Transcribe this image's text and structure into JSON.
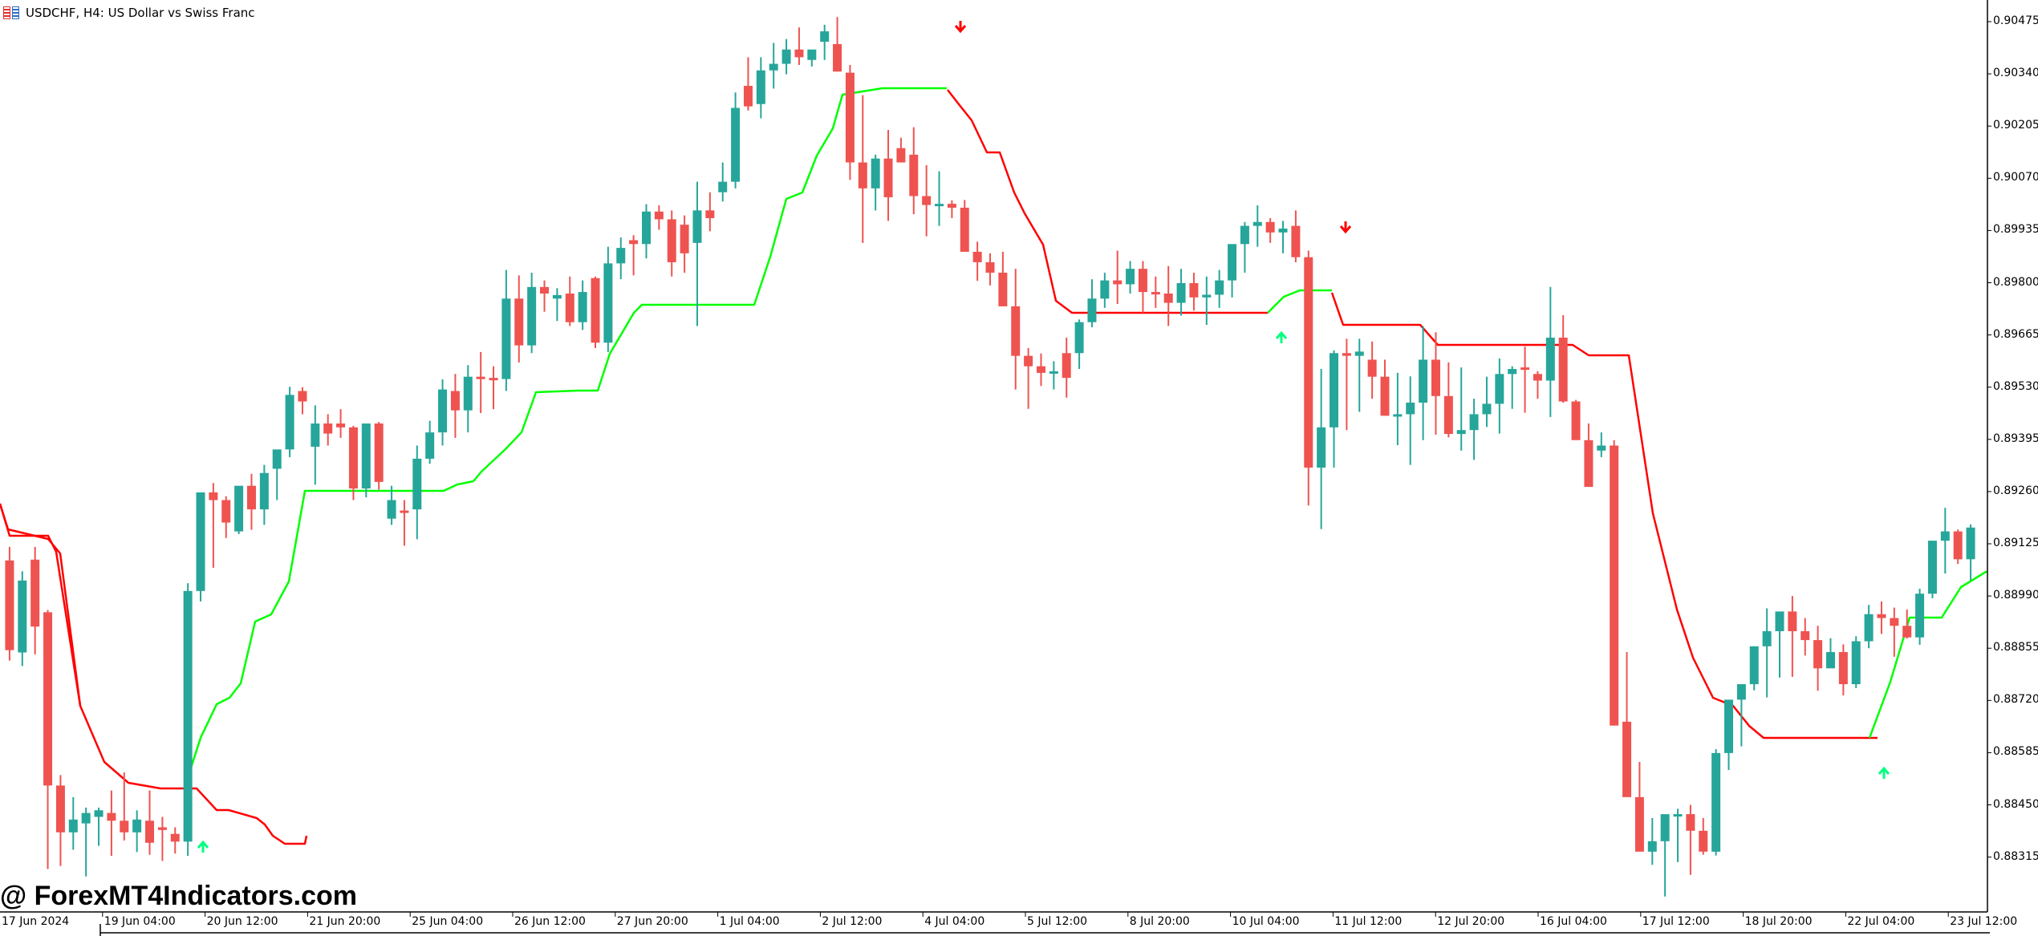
{
  "header": {
    "symbol": "USDCHF",
    "timeframe": "H4",
    "description": "US Dollar vs Swiss Franc",
    "title": "USDCHF, H4:  US Dollar vs Swiss Franc"
  },
  "watermark": "@ ForexMT4Indicators.com",
  "colors": {
    "bull": "#26a69a",
    "bear": "#ef5350",
    "trend_down": "#ff0000",
    "trend_up": "#00ff00",
    "arrow_up": "#00ff7f",
    "arrow_down": "#ff0000",
    "axis": "#000000"
  },
  "chart_data": {
    "type": "candlestick",
    "title": "USDCHF, H4: US Dollar vs Swiss Franc",
    "xlabel": "",
    "ylabel": "",
    "ylim": [
      0.8822,
      0.9053
    ],
    "y_ticks": [
      "0.90475",
      "0.90340",
      "0.90205",
      "0.90070",
      "0.89935",
      "0.89800",
      "0.89665",
      "0.89530",
      "0.89395",
      "0.89260",
      "0.89125",
      "0.88990",
      "0.88855",
      "0.88720",
      "0.88585",
      "0.88450",
      "0.88315"
    ],
    "x_ticks": [
      "17 Jun 2024",
      "19 Jun 04:00",
      "20 Jun 12:00",
      "21 Jun 20:00",
      "25 Jun 04:00",
      "26 Jun 12:00",
      "27 Jun 20:00",
      "1 Jul 04:00",
      "2 Jul 12:00",
      "4 Jul 04:00",
      "5 Jul 12:00",
      "8 Jul 20:00",
      "10 Jul 04:00",
      "11 Jul 12:00",
      "12 Jul 20:00",
      "16 Jul 04:00",
      "17 Jul 12:00",
      "18 Jul 20:00",
      "22 Jul 04:00",
      "23 Jul 12:00"
    ],
    "legend": [],
    "candles_ohlc": [
      [
        0.89082,
        0.89117,
        0.88823,
        0.8885
      ],
      [
        0.88844,
        0.89054,
        0.88809,
        0.8903
      ],
      [
        0.89084,
        0.89117,
        0.88839,
        0.88911
      ],
      [
        0.88948,
        0.88954,
        0.88284,
        0.885
      ],
      [
        0.885,
        0.88527,
        0.88292,
        0.88379
      ],
      [
        0.88379,
        0.8847,
        0.88334,
        0.88412
      ],
      [
        0.88402,
        0.88443,
        0.88265,
        0.88429
      ],
      [
        0.88419,
        0.88443,
        0.88344,
        0.88436
      ],
      [
        0.88429,
        0.88487,
        0.88318,
        0.88409
      ],
      [
        0.88409,
        0.88534,
        0.88358,
        0.88379
      ],
      [
        0.88379,
        0.88436,
        0.88328,
        0.88412
      ],
      [
        0.88409,
        0.88487,
        0.88321,
        0.88352
      ],
      [
        0.88392,
        0.88419,
        0.88305,
        0.88385
      ],
      [
        0.88375,
        0.88392,
        0.88324,
        0.88355
      ],
      [
        0.88355,
        0.89023,
        0.88318,
        0.89003
      ],
      [
        0.89003,
        0.89157,
        0.88976,
        0.89258
      ],
      [
        0.89258,
        0.89282,
        0.89063,
        0.89238
      ],
      [
        0.89238,
        0.89248,
        0.8914,
        0.8918
      ],
      [
        0.89157,
        0.89258,
        0.8915,
        0.89275
      ],
      [
        0.89275,
        0.89306,
        0.89161,
        0.89214
      ],
      [
        0.89214,
        0.89329,
        0.89174,
        0.89308
      ],
      [
        0.89319,
        0.89343,
        0.89238,
        0.89369
      ],
      [
        0.89369,
        0.89531,
        0.89349,
        0.8951
      ],
      [
        0.8952,
        0.8953,
        0.8946,
        0.89493
      ],
      [
        0.89376,
        0.89483,
        0.89278,
        0.89436
      ],
      [
        0.89436,
        0.8946,
        0.89379,
        0.8941
      ],
      [
        0.89436,
        0.89473,
        0.89399,
        0.89426
      ],
      [
        0.89426,
        0.8943,
        0.89238,
        0.89268
      ],
      [
        0.89268,
        0.8943,
        0.89245,
        0.89436
      ],
      [
        0.89436,
        0.8944,
        0.89265,
        0.89285
      ],
      [
        0.8919,
        0.89275,
        0.89174,
        0.89238
      ],
      [
        0.89211,
        0.89238,
        0.8912,
        0.89208
      ],
      [
        0.89214,
        0.89379,
        0.89137,
        0.89345
      ],
      [
        0.89345,
        0.89443,
        0.89332,
        0.89413
      ],
      [
        0.89413,
        0.8955,
        0.89379,
        0.89524
      ],
      [
        0.8952,
        0.89564,
        0.89399,
        0.8947
      ],
      [
        0.8947,
        0.89587,
        0.89413,
        0.89557
      ],
      [
        0.89557,
        0.89621,
        0.89463,
        0.89554
      ],
      [
        0.89554,
        0.89584,
        0.89473,
        0.89551
      ],
      [
        0.89551,
        0.89833,
        0.8952,
        0.89759
      ],
      [
        0.89759,
        0.89819,
        0.89594,
        0.89638
      ],
      [
        0.89638,
        0.89826,
        0.89618,
        0.89789
      ],
      [
        0.89789,
        0.89806,
        0.89725,
        0.89772
      ],
      [
        0.89759,
        0.89786,
        0.89701,
        0.89768
      ],
      [
        0.89772,
        0.89816,
        0.89688,
        0.89698
      ],
      [
        0.89698,
        0.89806,
        0.89678,
        0.89776
      ],
      [
        0.89812,
        0.89816,
        0.89631,
        0.89645
      ],
      [
        0.89645,
        0.89893,
        0.89621,
        0.8985
      ],
      [
        0.8985,
        0.89917,
        0.89809,
        0.8989
      ],
      [
        0.8991,
        0.89923,
        0.89819,
        0.899
      ],
      [
        0.899,
        0.90003,
        0.89863,
        0.89984
      ],
      [
        0.89984,
        0.9,
        0.89937,
        0.89964
      ],
      [
        0.89964,
        0.89987,
        0.89816,
        0.89853
      ],
      [
        0.8995,
        0.89974,
        0.89826,
        0.89876
      ],
      [
        0.89903,
        0.90061,
        0.89688,
        0.89987
      ],
      [
        0.89987,
        0.90034,
        0.89933,
        0.89967
      ],
      [
        0.90034,
        0.90111,
        0.9001,
        0.90061
      ],
      [
        0.90061,
        0.90292,
        0.90044,
        0.90252
      ],
      [
        0.90309,
        0.90383,
        0.90245,
        0.90256
      ],
      [
        0.90262,
        0.90383,
        0.90225,
        0.90349
      ],
      [
        0.90349,
        0.9042,
        0.90302,
        0.90366
      ],
      [
        0.90366,
        0.9043,
        0.90339,
        0.90403
      ],
      [
        0.90403,
        0.9046,
        0.90363,
        0.90383
      ],
      [
        0.90376,
        0.90393,
        0.90359,
        0.90403
      ],
      [
        0.90423,
        0.90467,
        0.90376,
        0.9045
      ],
      [
        0.90417,
        0.90487,
        0.90346,
        0.90346
      ],
      [
        0.90343,
        0.90363,
        0.90066,
        0.90111
      ],
      [
        0.90111,
        0.90285,
        0.89903,
        0.90044
      ],
      [
        0.90044,
        0.90131,
        0.89987,
        0.90121
      ],
      [
        0.90121,
        0.90195,
        0.8996,
        0.90021
      ],
      [
        0.90148,
        0.90175,
        0.90121,
        0.90111
      ],
      [
        0.90131,
        0.90202,
        0.89977,
        0.90024
      ],
      [
        0.90024,
        0.90104,
        0.8992,
        0.90001
      ],
      [
        0.90001,
        0.90088,
        0.89947,
        0.90004
      ],
      [
        0.90004,
        0.90013,
        0.89967,
        0.89994
      ],
      [
        0.89994,
        0.90014,
        0.89896,
        0.8988
      ],
      [
        0.8988,
        0.89906,
        0.89805,
        0.89853
      ],
      [
        0.89853,
        0.89876,
        0.89793,
        0.89826
      ],
      [
        0.89826,
        0.8988,
        0.89768,
        0.89739
      ],
      [
        0.89739,
        0.89836,
        0.89524,
        0.89611
      ],
      [
        0.89611,
        0.89631,
        0.89474,
        0.89584
      ],
      [
        0.89584,
        0.89617,
        0.89533,
        0.89567
      ],
      [
        0.89567,
        0.89597,
        0.89524,
        0.89571
      ],
      [
        0.89618,
        0.89658,
        0.89503,
        0.89554
      ],
      [
        0.89618,
        0.89705,
        0.89577,
        0.89698
      ],
      [
        0.89698,
        0.89809,
        0.89685,
        0.89759
      ],
      [
        0.89759,
        0.89826,
        0.89735,
        0.89806
      ],
      [
        0.89806,
        0.89883,
        0.89745,
        0.89796
      ],
      [
        0.89796,
        0.89856,
        0.89772,
        0.89836
      ],
      [
        0.89836,
        0.89856,
        0.89722,
        0.89776
      ],
      [
        0.89776,
        0.89816,
        0.89735,
        0.89772
      ],
      [
        0.89772,
        0.89843,
        0.89688,
        0.89748
      ],
      [
        0.89748,
        0.89836,
        0.89715,
        0.89799
      ],
      [
        0.89799,
        0.89826,
        0.89728,
        0.89762
      ],
      [
        0.89762,
        0.89816,
        0.89691,
        0.89769
      ],
      [
        0.89769,
        0.89833,
        0.89735,
        0.89806
      ],
      [
        0.89806,
        0.89883,
        0.89762,
        0.899
      ],
      [
        0.899,
        0.89957,
        0.89826,
        0.89947
      ],
      [
        0.89947,
        0.9,
        0.89893,
        0.89957
      ],
      [
        0.89957,
        0.89967,
        0.89903,
        0.8993
      ],
      [
        0.8993,
        0.8996,
        0.89876,
        0.8994
      ],
      [
        0.89947,
        0.89987,
        0.89853,
        0.89866
      ],
      [
        0.89866,
        0.89883,
        0.89224,
        0.89322
      ],
      [
        0.89322,
        0.89577,
        0.89163,
        0.89426
      ],
      [
        0.89426,
        0.89625,
        0.89322,
        0.89618
      ],
      [
        0.89618,
        0.89655,
        0.89419,
        0.89611
      ],
      [
        0.89611,
        0.89655,
        0.89466,
        0.89622
      ],
      [
        0.89601,
        0.89648,
        0.895,
        0.89557
      ],
      [
        0.89557,
        0.89601,
        0.8949,
        0.89456
      ],
      [
        0.89456,
        0.89567,
        0.8938,
        0.8946
      ],
      [
        0.8946,
        0.89558,
        0.89329,
        0.8949
      ],
      [
        0.8949,
        0.89688,
        0.89393,
        0.89601
      ],
      [
        0.89601,
        0.89672,
        0.89407,
        0.89507
      ],
      [
        0.89507,
        0.89594,
        0.894,
        0.89409
      ],
      [
        0.89409,
        0.89581,
        0.89366,
        0.89419
      ],
      [
        0.89419,
        0.895,
        0.89342,
        0.8946
      ],
      [
        0.8946,
        0.89557,
        0.89427,
        0.89487
      ],
      [
        0.89487,
        0.89604,
        0.8941,
        0.89564
      ],
      [
        0.89564,
        0.89584,
        0.89474,
        0.89577
      ],
      [
        0.89581,
        0.89635,
        0.89464,
        0.89577
      ],
      [
        0.89564,
        0.89571,
        0.895,
        0.89547
      ],
      [
        0.89547,
        0.89789,
        0.89453,
        0.89658
      ],
      [
        0.89658,
        0.89716,
        0.8949,
        0.89493
      ],
      [
        0.89493,
        0.89497,
        0.89433,
        0.89393
      ],
      [
        0.89393,
        0.89436,
        0.89332,
        0.89272
      ],
      [
        0.89366,
        0.89413,
        0.89349,
        0.89379
      ],
      [
        0.89379,
        0.89393,
        0.88655,
        0.88655
      ],
      [
        0.88665,
        0.88845,
        0.88524,
        0.8847
      ],
      [
        0.8847,
        0.88561,
        0.88416,
        0.88329
      ],
      [
        0.88329,
        0.88416,
        0.88295,
        0.88356
      ],
      [
        0.88356,
        0.88366,
        0.88213,
        0.88426
      ],
      [
        0.88426,
        0.8844,
        0.88302,
        0.88426
      ],
      [
        0.88426,
        0.8845,
        0.88269,
        0.88383
      ],
      [
        0.88383,
        0.88416,
        0.88321,
        0.88329
      ],
      [
        0.88329,
        0.88594,
        0.88319,
        0.88584
      ],
      [
        0.88584,
        0.88628,
        0.8854,
        0.88722
      ],
      [
        0.88722,
        0.88745,
        0.88601,
        0.88762
      ],
      [
        0.88762,
        0.88802,
        0.88746,
        0.8886
      ],
      [
        0.8886,
        0.88958,
        0.88728,
        0.88899
      ],
      [
        0.88899,
        0.88948,
        0.88779,
        0.8895
      ],
      [
        0.8895,
        0.8899,
        0.88781,
        0.88899
      ],
      [
        0.88899,
        0.88933,
        0.88836,
        0.88876
      ],
      [
        0.88876,
        0.88913,
        0.88745,
        0.88803
      ],
      [
        0.88803,
        0.88881,
        0.88812,
        0.88845
      ],
      [
        0.88845,
        0.88865,
        0.88733,
        0.88762
      ],
      [
        0.88762,
        0.88886,
        0.88752,
        0.88873
      ],
      [
        0.88873,
        0.88967,
        0.88855,
        0.88943
      ],
      [
        0.88943,
        0.88976,
        0.88892,
        0.88933
      ],
      [
        0.88933,
        0.8896,
        0.88833,
        0.88913
      ],
      [
        0.88913,
        0.88955,
        0.8888,
        0.88883
      ],
      [
        0.88883,
        0.89009,
        0.88864,
        0.88996
      ],
      [
        0.88996,
        0.89122,
        0.88984,
        0.89133
      ],
      [
        0.89133,
        0.89218,
        0.89048,
        0.89157
      ],
      [
        0.89157,
        0.89162,
        0.89073,
        0.89085
      ],
      [
        0.89085,
        0.89175,
        0.8903,
        0.89167
      ]
    ],
    "trend_line": {
      "note": "SuperTrend-style stop line; red = downtrend, green = uptrend",
      "down_segments_prices": [
        0.89221,
        0.89221,
        0.88984,
        0.88758,
        0.88704,
        0.88697,
        0.88677,
        0.88612,
        0.88612,
        0.88562,
        0.88562
      ],
      "up_segments_prices": [
        0.88562,
        0.88751,
        0.88784,
        0.88913,
        0.89,
        0.89258,
        0.89258,
        0.89302,
        0.89409,
        0.89527,
        0.8953,
        0.89628,
        0.89826,
        0.89826,
        0.90033,
        0.90313,
        0.9034,
        0.9034,
        0.89785,
        0.89785
      ]
    },
    "signals": [
      {
        "type": "buy",
        "bar": 15,
        "price": 0.88357
      },
      {
        "type": "sell",
        "bar": 73,
        "price": 0.9047
      },
      {
        "type": "buy",
        "bar": 153,
        "price": 0.89661
      },
      {
        "type": "sell",
        "bar": 160,
        "price": 0.89948
      },
      {
        "type": "buy",
        "bar": 227,
        "price": 0.8853
      }
    ]
  }
}
